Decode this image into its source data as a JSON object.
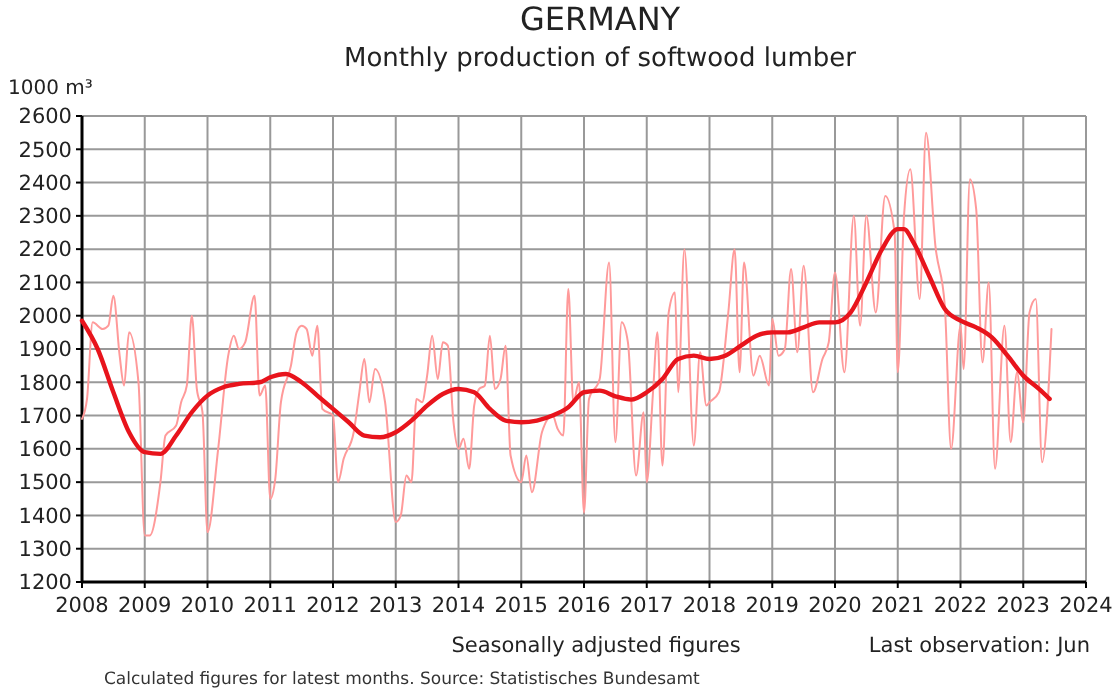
{
  "chart_data": {
    "type": "line",
    "title": "GERMANY",
    "subtitle": "Monthly production of softwood lumber",
    "ylabel": "1000 m³",
    "annotations": [
      "Seasonally adjusted figures",
      "Last observation: Jun",
      "Calculated figures for latest months. Source: Statistisches Bundesamt"
    ],
    "xlim": [
      2008,
      2024
    ],
    "xticks": [
      2008,
      2009,
      2010,
      2011,
      2012,
      2013,
      2014,
      2015,
      2016,
      2017,
      2018,
      2019,
      2020,
      2021,
      2022,
      2023,
      2024
    ],
    "ylim": [
      1200,
      2600
    ],
    "yticks": [
      1200,
      1300,
      1400,
      1500,
      1600,
      1700,
      1800,
      1900,
      2000,
      2100,
      2200,
      2300,
      2400,
      2500,
      2600
    ],
    "grid": true,
    "marker": "none",
    "line_style": "solid",
    "series": [
      {
        "color": "#ff9a9a",
        "x": [
          2008.0,
          2008.08,
          2008.17,
          2008.33,
          2008.42,
          2008.5,
          2008.6,
          2008.67,
          2008.75,
          2008.9,
          2009.0,
          2009.08,
          2009.25,
          2009.33,
          2009.5,
          2009.58,
          2009.67,
          2009.75,
          2009.83,
          2009.92,
          2010.0,
          2010.17,
          2010.33,
          2010.42,
          2010.5,
          2010.6,
          2010.75,
          2010.83,
          2010.92,
          2011.0,
          2011.08,
          2011.17,
          2011.33,
          2011.42,
          2011.5,
          2011.58,
          2011.67,
          2011.75,
          2011.83,
          2012.0,
          2012.08,
          2012.17,
          2012.33,
          2012.42,
          2012.5,
          2012.58,
          2012.67,
          2012.83,
          2013.0,
          2013.08,
          2013.17,
          2013.25,
          2013.33,
          2013.42,
          2013.5,
          2013.58,
          2013.67,
          2013.75,
          2013.83,
          2013.92,
          2014.0,
          2014.08,
          2014.17,
          2014.25,
          2014.33,
          2014.42,
          2014.5,
          2014.58,
          2014.67,
          2014.75,
          2014.83,
          2015.0,
          2015.08,
          2015.17,
          2015.33,
          2015.5,
          2015.58,
          2015.67,
          2015.75,
          2015.83,
          2015.92,
          2016.0,
          2016.08,
          2016.25,
          2016.4,
          2016.5,
          2016.6,
          2016.7,
          2016.83,
          2016.95,
          2017.0,
          2017.1,
          2017.17,
          2017.25,
          2017.35,
          2017.45,
          2017.5,
          2017.6,
          2017.75,
          2017.85,
          2017.95,
          2018.0,
          2018.15,
          2018.3,
          2018.4,
          2018.48,
          2018.55,
          2018.7,
          2018.8,
          2018.95,
          2019.0,
          2019.1,
          2019.2,
          2019.3,
          2019.4,
          2019.5,
          2019.65,
          2019.8,
          2019.9,
          2020.0,
          2020.15,
          2020.3,
          2020.4,
          2020.5,
          2020.65,
          2020.8,
          2020.95,
          2021.0,
          2021.1,
          2021.2,
          2021.35,
          2021.45,
          2021.6,
          2021.75,
          2021.85,
          2022.0,
          2022.05,
          2022.15,
          2022.25,
          2022.35,
          2022.45,
          2022.55,
          2022.7,
          2022.8,
          2022.9,
          2023.0,
          2023.1,
          2023.2,
          2023.3,
          2023.45
        ],
        "values": [
          1690,
          1750,
          1980,
          1960,
          1970,
          2060,
          1880,
          1790,
          1950,
          1800,
          1340,
          1340,
          1500,
          1640,
          1670,
          1740,
          1790,
          2000,
          1780,
          1710,
          1350,
          1600,
          1880,
          1940,
          1900,
          1920,
          2060,
          1760,
          1790,
          1450,
          1510,
          1740,
          1850,
          1950,
          1970,
          1960,
          1880,
          1970,
          1720,
          1700,
          1500,
          1570,
          1650,
          1770,
          1870,
          1740,
          1840,
          1740,
          1380,
          1400,
          1520,
          1500,
          1750,
          1740,
          1820,
          1940,
          1810,
          1920,
          1910,
          1680,
          1600,
          1630,
          1540,
          1730,
          1780,
          1790,
          1940,
          1780,
          1810,
          1910,
          1580,
          1500,
          1580,
          1470,
          1650,
          1700,
          1660,
          1640,
          2080,
          1740,
          1800,
          1408,
          1750,
          1810,
          2160,
          1620,
          1980,
          1920,
          1520,
          1710,
          1500,
          1770,
          1950,
          1550,
          2010,
          2070,
          1770,
          2200,
          1610,
          1890,
          1730,
          1740,
          1770,
          2010,
          2200,
          1830,
          2160,
          1820,
          1880,
          1790,
          1990,
          1880,
          1900,
          2140,
          1890,
          2150,
          1770,
          1870,
          1920,
          2130,
          1830,
          2300,
          1970,
          2300,
          2010,
          2360,
          2250,
          1830,
          2300,
          2440,
          2050,
          2550,
          2210,
          2030,
          1600,
          1970,
          1840,
          2410,
          2320,
          1860,
          2100,
          1540,
          1970,
          1620,
          1830,
          1680,
          2010,
          2050,
          1560,
          1960
        ]
      },
      {
        "color": "#e8141c",
        "x": [
          2008.0,
          2008.25,
          2008.5,
          2008.75,
          2009.0,
          2009.25,
          2009.5,
          2009.75,
          2010.0,
          2010.25,
          2010.5,
          2010.83,
          2011.0,
          2011.25,
          2011.5,
          2011.75,
          2012.0,
          2012.25,
          2012.5,
          2012.75,
          2013.0,
          2013.25,
          2013.5,
          2013.75,
          2014.0,
          2014.25,
          2014.5,
          2014.75,
          2015.0,
          2015.25,
          2015.5,
          2015.75,
          2016.0,
          2016.25,
          2016.5,
          2016.75,
          2017.0,
          2017.25,
          2017.5,
          2017.75,
          2018.0,
          2018.25,
          2018.5,
          2018.75,
          2019.0,
          2019.25,
          2019.5,
          2019.75,
          2020.0,
          2020.25,
          2020.5,
          2020.75,
          2021.0,
          2021.1,
          2021.25,
          2021.5,
          2021.75,
          2022.0,
          2022.25,
          2022.5,
          2022.75,
          2023.0,
          2023.25,
          2023.42
        ],
        "values": [
          1985,
          1900,
          1770,
          1650,
          1590,
          1585,
          1640,
          1710,
          1760,
          1785,
          1795,
          1800,
          1815,
          1825,
          1800,
          1760,
          1720,
          1680,
          1640,
          1635,
          1650,
          1685,
          1730,
          1765,
          1780,
          1770,
          1720,
          1685,
          1680,
          1685,
          1700,
          1725,
          1770,
          1775,
          1758,
          1748,
          1770,
          1810,
          1870,
          1880,
          1870,
          1880,
          1910,
          1940,
          1950,
          1950,
          1965,
          1980,
          1980,
          2010,
          2100,
          2200,
          2260,
          2260,
          2220,
          2120,
          2020,
          1985,
          1965,
          1935,
          1880,
          1820,
          1780,
          1750
        ]
      }
    ]
  }
}
